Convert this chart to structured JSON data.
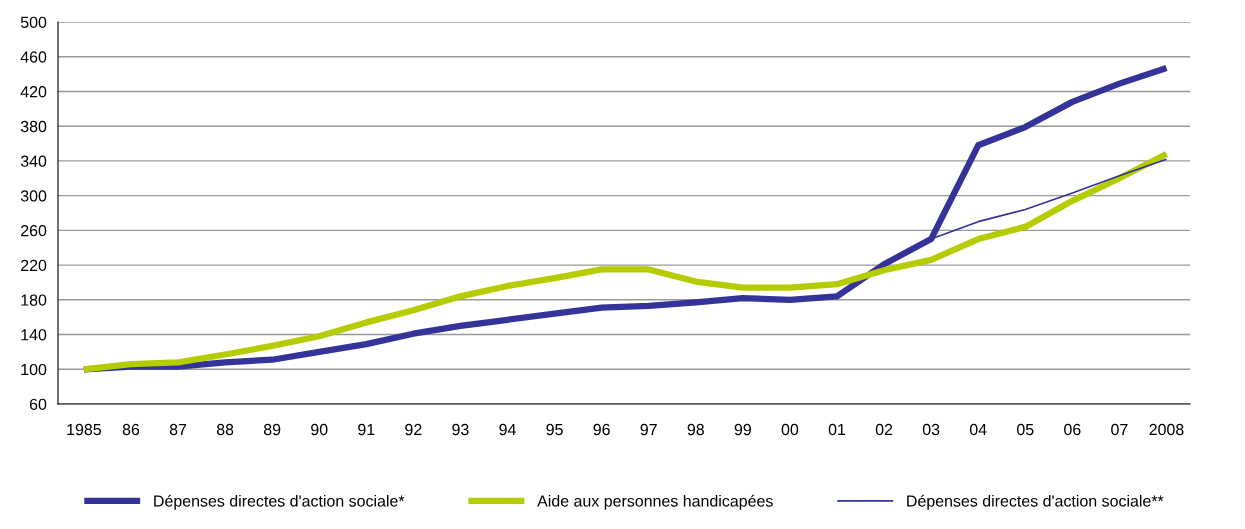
{
  "chart_data": {
    "type": "line",
    "categories": [
      "1985",
      "86",
      "87",
      "88",
      "89",
      "90",
      "91",
      "92",
      "93",
      "94",
      "95",
      "96",
      "97",
      "98",
      "99",
      "00",
      "01",
      "02",
      "03",
      "04",
      "05",
      "06",
      "07",
      "2008"
    ],
    "series": [
      {
        "name": "Dépenses directes d'action sociale*",
        "color": "#333399",
        "values": [
          100,
          103,
          103,
          108,
          111,
          120,
          129,
          141,
          150,
          157,
          164,
          171,
          173,
          177,
          182,
          180,
          184,
          221,
          250,
          358,
          379,
          408,
          429,
          447
        ]
      },
      {
        "name": "Aide aux personnes handicapées",
        "color": "#b5cc00",
        "values": [
          100,
          106,
          108,
          117,
          127,
          138,
          154,
          168,
          184,
          196,
          205,
          215,
          215,
          201,
          194,
          194,
          198,
          214,
          226,
          250,
          264,
          294,
          320,
          348
        ]
      },
      {
        "name": "Dépenses directes d'action sociale**",
        "color": "#333399",
        "values": [
          null,
          null,
          null,
          null,
          null,
          null,
          null,
          null,
          null,
          null,
          null,
          null,
          null,
          null,
          null,
          null,
          null,
          null,
          250,
          270,
          284,
          303,
          323,
          342
        ]
      }
    ],
    "ylim": [
      60,
      500
    ],
    "yticks": [
      60,
      100,
      140,
      180,
      220,
      260,
      300,
      340,
      380,
      420,
      460,
      500
    ],
    "grid": "y",
    "legend": "bottom",
    "marker": "none",
    "line_style": "solid"
  }
}
